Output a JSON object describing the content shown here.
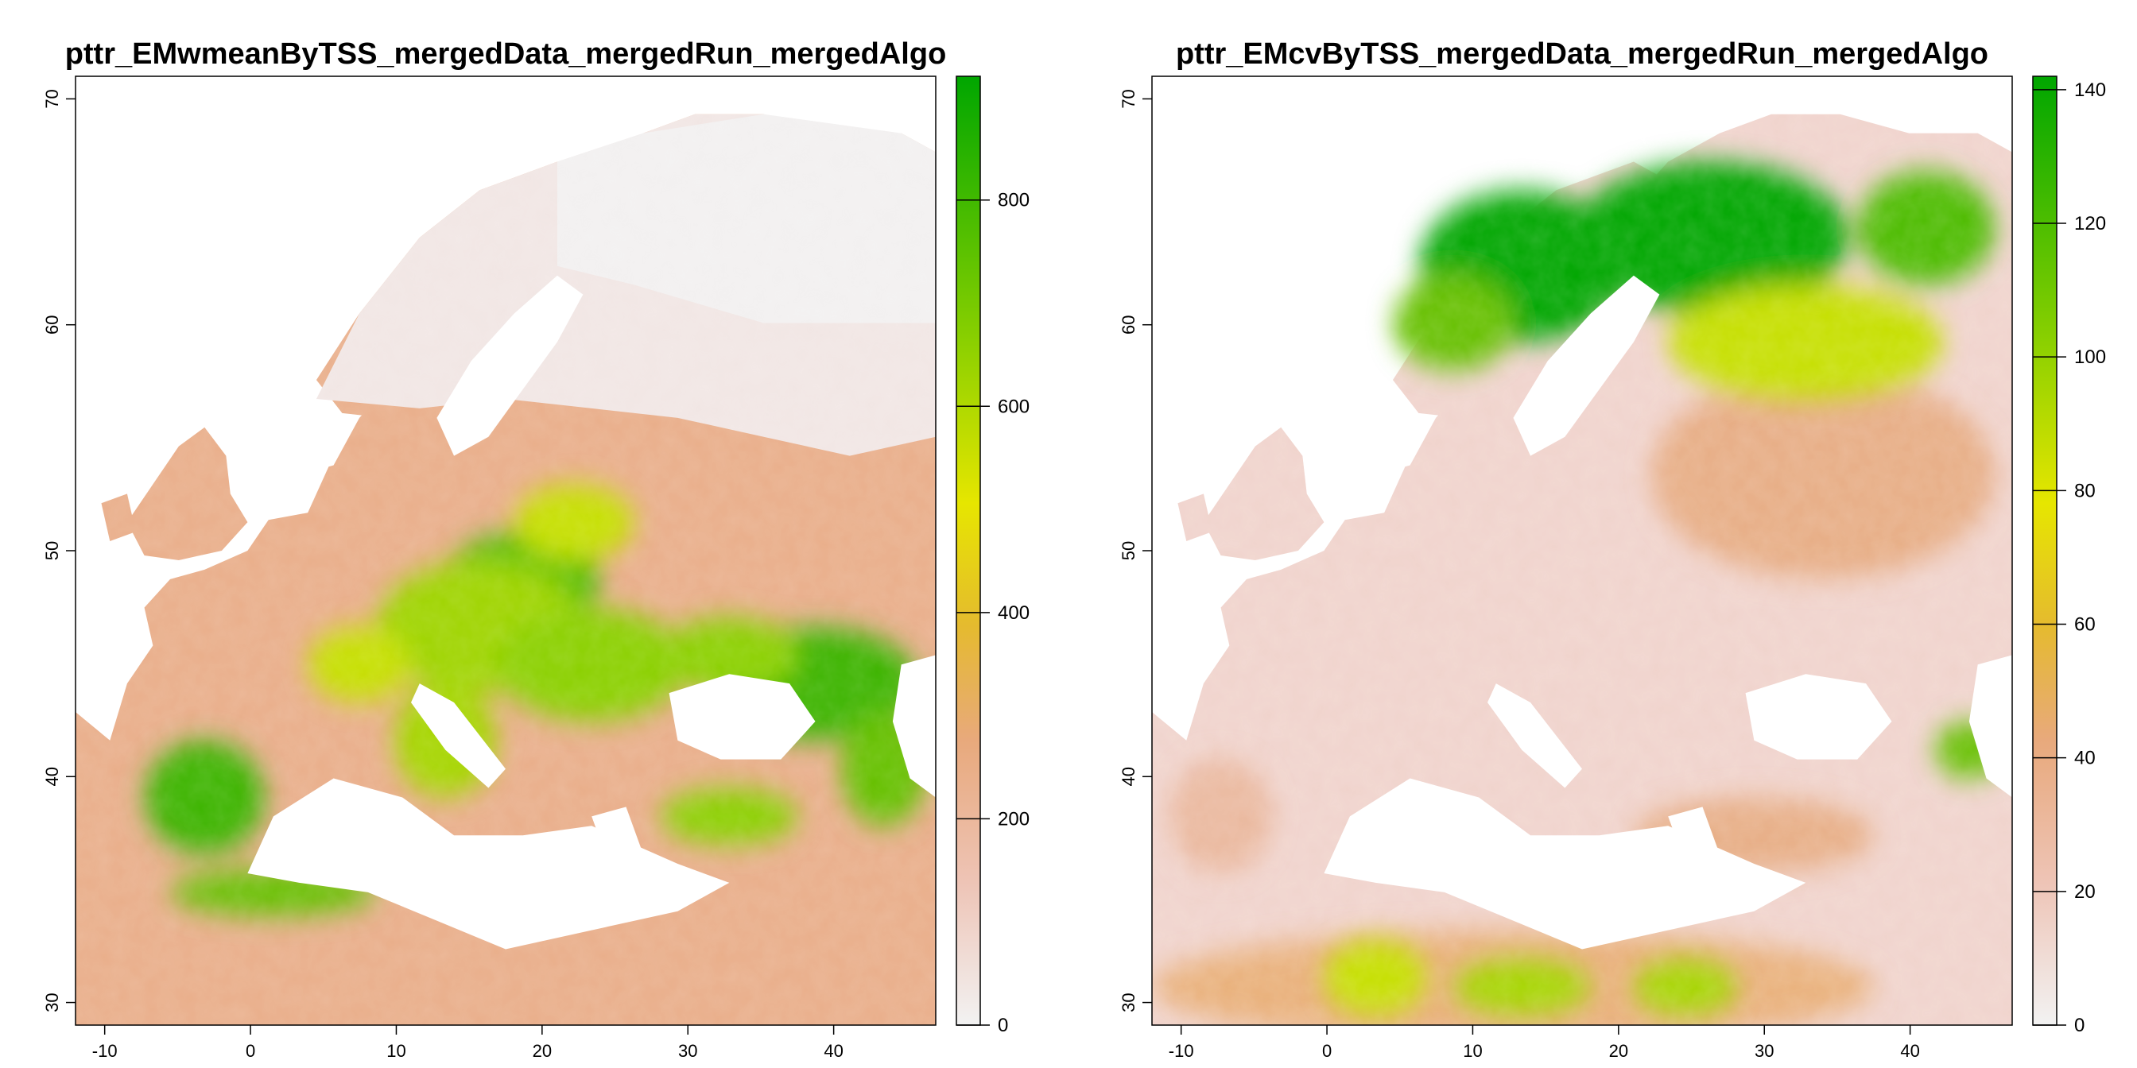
{
  "panels": [
    {
      "title": "pttr_EMwmeanByTSS_mergedData_mergedRun_mergedAlgo",
      "variable": "weighted-mean",
      "x_ticks": [
        "-10",
        "0",
        "10",
        "20",
        "30",
        "40"
      ],
      "y_ticks": [
        "30",
        "40",
        "50",
        "60",
        "70"
      ],
      "legend_ticks": [
        "0",
        "200",
        "400",
        "600",
        "800"
      ],
      "legend_max": 920
    },
    {
      "title": "pttr_EMcvByTSS_mergedData_mergedRun_mergedAlgo",
      "variable": "coefficient-of-variation",
      "x_ticks": [
        "-10",
        "0",
        "10",
        "20",
        "30",
        "40"
      ],
      "y_ticks": [
        "30",
        "40",
        "50",
        "60",
        "70"
      ],
      "legend_ticks": [
        "0",
        "20",
        "40",
        "60",
        "80",
        "100",
        "120",
        "140"
      ],
      "legend_max": 142
    }
  ],
  "extent": {
    "lon": [
      -12,
      47
    ],
    "lat": [
      29,
      71
    ]
  },
  "palette": [
    "#f2f2f2",
    "#eec4b6",
    "#e8a97c",
    "#e5ba2f",
    "#e6e600",
    "#8bd000",
    "#00a600"
  ]
}
